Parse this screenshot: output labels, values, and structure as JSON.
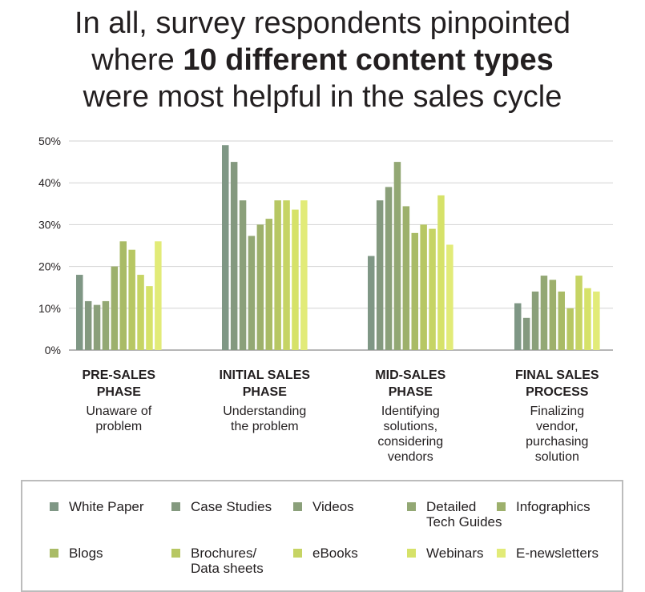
{
  "title": {
    "line1": "In all, survey respondents pinpointed",
    "line2_pre": "where ",
    "line2_bold": "10 different content types",
    "line3": "were most helpful in the sales cycle"
  },
  "chart_data": {
    "type": "bar",
    "title": "In all, survey respondents pinpointed where 10 different content types were most helpful in the sales cycle",
    "ylim": [
      0,
      50
    ],
    "yticks": [
      "0%",
      "10%",
      "20%",
      "30%",
      "40%",
      "50%"
    ],
    "grid": true,
    "legend_position": "bottom",
    "categories": [
      {
        "heading": "PRE-SALES\nPHASE",
        "sub": "Unaware of\nproblem"
      },
      {
        "heading": "INITIAL SALES\nPHASE",
        "sub": "Understanding\nthe problem"
      },
      {
        "heading": "MID-SALES\nPHASE",
        "sub": "Identifying\nsolutions,\nconsidering\nvendors"
      },
      {
        "heading": "FINAL SALES\nPROCESS",
        "sub": "Finalizing\nvendor,\npurchasing\nsolution"
      }
    ],
    "series": [
      {
        "name": "White Paper",
        "color": "#7f9785",
        "values": [
          18,
          49,
          22.5,
          11.2
        ]
      },
      {
        "name": "Case Studies",
        "color": "#84997f",
        "values": [
          11.7,
          45,
          35.8,
          7.7
        ]
      },
      {
        "name": "Videos",
        "color": "#8ba07a",
        "values": [
          10.8,
          35.8,
          39,
          14
        ]
      },
      {
        "name": "Detailed\nTech Guides",
        "color": "#93a874",
        "values": [
          11.7,
          27.3,
          45,
          17.8
        ]
      },
      {
        "name": "Infographics",
        "color": "#9db06c",
        "values": [
          20,
          30,
          34.4,
          16.8
        ]
      },
      {
        "name": "Blogs",
        "color": "#a9bb66",
        "values": [
          26,
          31.4,
          28,
          14
        ]
      },
      {
        "name": "Brochures/\nData sheets",
        "color": "#b7c763",
        "values": [
          24,
          35.8,
          30,
          10
        ]
      },
      {
        "name": "eBooks",
        "color": "#c6d464",
        "values": [
          18,
          35.8,
          29,
          17.8
        ]
      },
      {
        "name": "Webinars",
        "color": "#d6e269",
        "values": [
          15.3,
          33.6,
          37,
          14.8
        ]
      },
      {
        "name": "E-newsletters",
        "color": "#e2eb78",
        "values": [
          26,
          35.8,
          25.2,
          14
        ]
      }
    ]
  }
}
